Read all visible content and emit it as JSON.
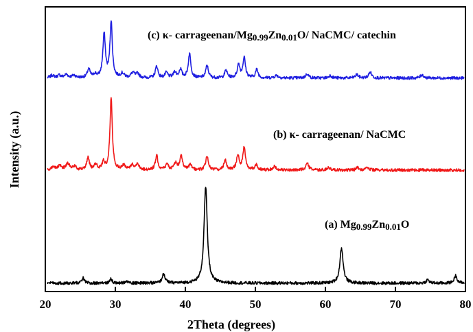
{
  "chart_data": {
    "type": "line",
    "xlabel": "2Theta (degrees)",
    "ylabel": "Intensity (a.u.)",
    "xlim": [
      20,
      80
    ],
    "x_ticks": [
      20,
      30,
      40,
      50,
      60,
      70,
      80
    ],
    "y_ticks_shown": false,
    "grid": false,
    "legend": "none",
    "series": [
      {
        "name": "(c) κ- carrageenan/Mg0.99Zn0.01O/ NaCMC/ catechin",
        "label_parts": [
          {
            "text": "(c) κ- carrageenan/Mg",
            "sub": false
          },
          {
            "text": "0.99",
            "sub": true
          },
          {
            "text": "Zn",
            "sub": false
          },
          {
            "text": "0.01",
            "sub": true
          },
          {
            "text": "O/ NaCMC/ catechin",
            "sub": false
          }
        ],
        "color": "#1f1fe0",
        "baseline": 2.55,
        "peaks": [
          {
            "x": 21.0,
            "h": 0.03,
            "w": 0.3
          },
          {
            "x": 22.0,
            "h": 0.03,
            "w": 0.3
          },
          {
            "x": 23.0,
            "h": 0.04,
            "w": 0.3
          },
          {
            "x": 24.1,
            "h": 0.03,
            "w": 0.3
          },
          {
            "x": 26.2,
            "h": 0.1,
            "w": 0.25
          },
          {
            "x": 27.1,
            "h": 0.04,
            "w": 0.25
          },
          {
            "x": 28.4,
            "h": 0.52,
            "w": 0.22
          },
          {
            "x": 29.4,
            "h": 0.67,
            "w": 0.2
          },
          {
            "x": 31.0,
            "h": 0.05,
            "w": 0.3
          },
          {
            "x": 32.5,
            "h": 0.06,
            "w": 0.3
          },
          {
            "x": 33.2,
            "h": 0.05,
            "w": 0.25
          },
          {
            "x": 35.9,
            "h": 0.14,
            "w": 0.22
          },
          {
            "x": 37.3,
            "h": 0.06,
            "w": 0.25
          },
          {
            "x": 38.5,
            "h": 0.07,
            "w": 0.25
          },
          {
            "x": 39.3,
            "h": 0.1,
            "w": 0.22
          },
          {
            "x": 40.6,
            "h": 0.29,
            "w": 0.22
          },
          {
            "x": 43.1,
            "h": 0.15,
            "w": 0.22
          },
          {
            "x": 45.8,
            "h": 0.09,
            "w": 0.22
          },
          {
            "x": 47.6,
            "h": 0.16,
            "w": 0.22
          },
          {
            "x": 48.4,
            "h": 0.24,
            "w": 0.22
          },
          {
            "x": 50.2,
            "h": 0.1,
            "w": 0.22
          },
          {
            "x": 53.0,
            "h": 0.03,
            "w": 0.3
          },
          {
            "x": 57.4,
            "h": 0.05,
            "w": 0.25
          },
          {
            "x": 60.7,
            "h": 0.03,
            "w": 0.25
          },
          {
            "x": 64.5,
            "h": 0.04,
            "w": 0.25
          },
          {
            "x": 66.4,
            "h": 0.07,
            "w": 0.25
          },
          {
            "x": 73.8,
            "h": 0.04,
            "w": 0.25
          }
        ]
      },
      {
        "name": "(b) κ- carrageenan/ NaCMC",
        "label_parts": [
          {
            "text": "(b) κ- carrageenan/ NaCMC",
            "sub": false
          }
        ],
        "color": "#f01818",
        "baseline": 1.45,
        "peaks": [
          {
            "x": 21.1,
            "h": 0.04,
            "w": 0.3
          },
          {
            "x": 22.1,
            "h": 0.05,
            "w": 0.3
          },
          {
            "x": 23.2,
            "h": 0.08,
            "w": 0.3
          },
          {
            "x": 24.2,
            "h": 0.04,
            "w": 0.3
          },
          {
            "x": 26.1,
            "h": 0.15,
            "w": 0.22
          },
          {
            "x": 27.2,
            "h": 0.06,
            "w": 0.25
          },
          {
            "x": 28.3,
            "h": 0.09,
            "w": 0.22
          },
          {
            "x": 29.4,
            "h": 0.87,
            "w": 0.2
          },
          {
            "x": 31.2,
            "h": 0.05,
            "w": 0.3
          },
          {
            "x": 32.4,
            "h": 0.06,
            "w": 0.3
          },
          {
            "x": 33.2,
            "h": 0.07,
            "w": 0.25
          },
          {
            "x": 35.9,
            "h": 0.17,
            "w": 0.22
          },
          {
            "x": 37.4,
            "h": 0.07,
            "w": 0.25
          },
          {
            "x": 38.6,
            "h": 0.08,
            "w": 0.25
          },
          {
            "x": 39.4,
            "h": 0.18,
            "w": 0.22
          },
          {
            "x": 40.7,
            "h": 0.06,
            "w": 0.25
          },
          {
            "x": 43.1,
            "h": 0.17,
            "w": 0.22
          },
          {
            "x": 45.7,
            "h": 0.12,
            "w": 0.22
          },
          {
            "x": 47.5,
            "h": 0.18,
            "w": 0.22
          },
          {
            "x": 48.4,
            "h": 0.27,
            "w": 0.22
          },
          {
            "x": 50.1,
            "h": 0.06,
            "w": 0.25
          },
          {
            "x": 52.7,
            "h": 0.04,
            "w": 0.3
          },
          {
            "x": 57.4,
            "h": 0.08,
            "w": 0.25
          },
          {
            "x": 60.5,
            "h": 0.03,
            "w": 0.25
          },
          {
            "x": 64.6,
            "h": 0.03,
            "w": 0.25
          },
          {
            "x": 66.0,
            "h": 0.03,
            "w": 0.25
          }
        ]
      },
      {
        "name": "(a) Mg0.99Zn0.01O",
        "label_parts": [
          {
            "text": "(a) Mg",
            "sub": false
          },
          {
            "text": "0.99",
            "sub": true
          },
          {
            "text": "Zn",
            "sub": false
          },
          {
            "text": "0.01",
            "sub": true
          },
          {
            "text": "O",
            "sub": false
          }
        ],
        "color": "#000000",
        "baseline": 0.1,
        "peaks": [
          {
            "x": 25.4,
            "h": 0.06,
            "w": 0.2
          },
          {
            "x": 29.4,
            "h": 0.05,
            "w": 0.2
          },
          {
            "x": 31.6,
            "h": 0.02,
            "w": 0.25
          },
          {
            "x": 36.9,
            "h": 0.11,
            "w": 0.25
          },
          {
            "x": 42.9,
            "h": 1.15,
            "w": 0.28
          },
          {
            "x": 62.3,
            "h": 0.42,
            "w": 0.28
          },
          {
            "x": 74.6,
            "h": 0.04,
            "w": 0.25
          },
          {
            "x": 78.6,
            "h": 0.09,
            "w": 0.25
          }
        ]
      }
    ]
  }
}
